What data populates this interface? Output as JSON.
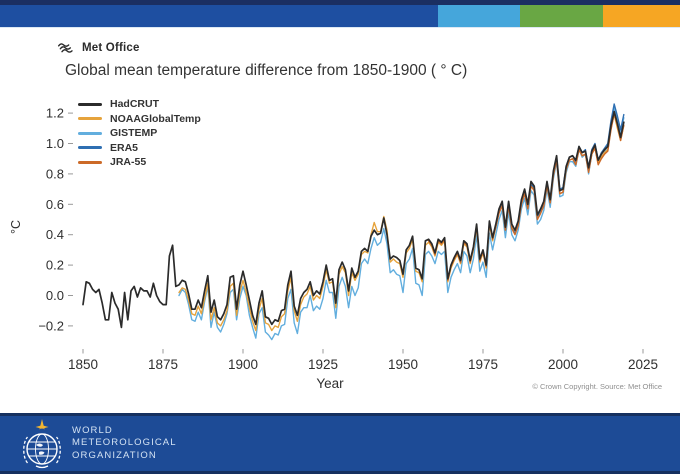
{
  "header": {
    "stripe_colors": {
      "navy": "#1b2f62",
      "blue": "#1e4fa1",
      "light_blue": "#45a6db",
      "green": "#69a744",
      "orange": "#f6a623"
    }
  },
  "brand": {
    "name": "Met Office"
  },
  "title": "Global mean temperature difference from 1850-1900 ( ° C)",
  "copyright": "© Crown Copyright. Source: Met Office",
  "footer": {
    "bar_color": "#1d4b96",
    "org": [
      "WORLD",
      "METEOROLOGICAL",
      "ORGANIZATION"
    ]
  },
  "chart_data": {
    "type": "line",
    "title": "Global mean temperature difference from 1850-1900 ( ° C)",
    "xlabel": "Year",
    "ylabel": "°C",
    "xlim": [
      1850,
      2025
    ],
    "ylim": [
      -0.3,
      1.3
    ],
    "grid": false,
    "legend_position": "top-left",
    "x_ticks": {
      "values": [
        1850,
        1875,
        1900,
        1925,
        1950,
        1975,
        2000,
        2025
      ],
      "labels": [
        "1850",
        "1875",
        "1900",
        "1925",
        "1950",
        "1975",
        "2000",
        "2025"
      ]
    },
    "y_ticks": {
      "values": [
        1.2,
        1.0,
        0.8,
        0.6,
        0.4,
        0.2,
        0.0,
        -0.2
      ],
      "labels": [
        "1.2",
        "1.0",
        "0.8",
        "0.6",
        "0.4",
        "0.2",
        "0.0",
        "−0.2"
      ]
    },
    "series": [
      {
        "name": "HadCRUT",
        "color": "#2b2b2b",
        "start_year": 1850,
        "values": [
          -0.06,
          0.09,
          0.08,
          0.04,
          0.02,
          0.04,
          -0.05,
          -0.16,
          -0.16,
          0.02,
          -0.05,
          -0.09,
          -0.21,
          0.02,
          -0.16,
          0.03,
          0.06,
          -0.01,
          0.05,
          0.03,
          0.03,
          -0.01,
          0.08,
          0.0,
          -0.04,
          -0.06,
          -0.06,
          0.26,
          0.33,
          0.06,
          0.07,
          0.1,
          0.09,
          0.01,
          -0.09,
          -0.09,
          -0.03,
          -0.08,
          0.03,
          0.13,
          -0.11,
          -0.03,
          -0.14,
          -0.16,
          -0.12,
          -0.06,
          0.12,
          0.13,
          -0.09,
          0.07,
          0.16,
          0.07,
          -0.03,
          -0.13,
          -0.19,
          -0.05,
          0.03,
          -0.14,
          -0.15,
          -0.19,
          -0.16,
          -0.17,
          -0.1,
          -0.09,
          0.07,
          0.16,
          -0.07,
          -0.13,
          -0.02,
          0.02,
          0.04,
          0.09,
          0.0,
          0.03,
          0.01,
          0.09,
          0.2,
          0.1,
          0.11,
          -0.05,
          0.17,
          0.22,
          0.17,
          0.03,
          0.18,
          0.12,
          0.16,
          0.29,
          0.31,
          0.29,
          0.39,
          0.43,
          0.4,
          0.41,
          0.51,
          0.4,
          0.24,
          0.26,
          0.25,
          0.23,
          0.14,
          0.3,
          0.33,
          0.39,
          0.18,
          0.17,
          0.11,
          0.36,
          0.37,
          0.34,
          0.28,
          0.37,
          0.35,
          0.38,
          0.11,
          0.2,
          0.25,
          0.29,
          0.23,
          0.36,
          0.34,
          0.23,
          0.32,
          0.47,
          0.24,
          0.3,
          0.2,
          0.49,
          0.38,
          0.47,
          0.57,
          0.62,
          0.45,
          0.62,
          0.47,
          0.43,
          0.49,
          0.63,
          0.7,
          0.6,
          0.75,
          0.72,
          0.53,
          0.57,
          0.62,
          0.75,
          0.63,
          0.82,
          0.92,
          0.69,
          0.7,
          0.85,
          0.91,
          0.92,
          0.89,
          0.98,
          0.94,
          0.95,
          0.84,
          0.95,
          0.99,
          0.89,
          0.93,
          0.96,
          0.98,
          1.12,
          1.21,
          1.13,
          1.04,
          1.14
        ]
      },
      {
        "name": "NOAAGlobalTemp",
        "color": "#e6a33c",
        "start_year": 1880,
        "values": [
          0.02,
          0.05,
          0.04,
          -0.03,
          -0.12,
          -0.13,
          -0.07,
          -0.12,
          -0.02,
          0.08,
          -0.16,
          -0.08,
          -0.18,
          -0.2,
          -0.16,
          -0.1,
          0.06,
          0.08,
          -0.13,
          0.02,
          0.1,
          0.02,
          -0.08,
          -0.17,
          -0.23,
          -0.09,
          -0.02,
          -0.18,
          -0.19,
          -0.23,
          -0.2,
          -0.21,
          -0.14,
          -0.12,
          0.03,
          0.12,
          -0.1,
          -0.17,
          -0.06,
          -0.01,
          0.01,
          0.06,
          -0.03,
          0.0,
          -0.02,
          0.06,
          0.17,
          0.08,
          0.09,
          -0.08,
          0.14,
          0.19,
          0.15,
          0.0,
          0.15,
          0.1,
          0.14,
          0.27,
          0.29,
          0.28,
          0.4,
          0.48,
          0.42,
          0.42,
          0.52,
          0.43,
          0.22,
          0.24,
          0.22,
          0.21,
          0.12,
          0.28,
          0.31,
          0.37,
          0.16,
          0.15,
          0.09,
          0.33,
          0.35,
          0.32,
          0.26,
          0.35,
          0.33,
          0.36,
          0.09,
          0.18,
          0.23,
          0.27,
          0.21,
          0.34,
          0.32,
          0.21,
          0.3,
          0.45,
          0.22,
          0.28,
          0.18,
          0.47,
          0.36,
          0.45,
          0.55,
          0.6,
          0.43,
          0.6,
          0.45,
          0.41,
          0.47,
          0.61,
          0.68,
          0.58,
          0.73,
          0.7,
          0.51,
          0.55,
          0.6,
          0.73,
          0.61,
          0.8,
          0.9,
          0.67,
          0.68,
          0.83,
          0.89,
          0.9,
          0.87,
          0.96,
          0.92,
          0.93,
          0.82,
          0.93,
          0.97,
          0.87,
          0.91,
          0.94,
          0.96,
          1.1,
          1.19,
          1.1,
          1.02,
          1.12
        ]
      },
      {
        "name": "GISTEMP",
        "color": "#62aede",
        "start_year": 1880,
        "values": [
          0.0,
          0.04,
          0.02,
          -0.06,
          -0.16,
          -0.17,
          -0.11,
          -0.16,
          -0.04,
          0.06,
          -0.21,
          -0.11,
          -0.21,
          -0.24,
          -0.19,
          -0.12,
          0.02,
          0.04,
          -0.16,
          -0.02,
          0.06,
          0.0,
          -0.13,
          -0.21,
          -0.28,
          -0.12,
          -0.08,
          -0.24,
          -0.26,
          -0.29,
          -0.25,
          -0.26,
          -0.2,
          -0.19,
          -0.02,
          0.04,
          -0.18,
          -0.25,
          -0.11,
          -0.08,
          -0.08,
          0.0,
          -0.1,
          -0.07,
          -0.09,
          -0.02,
          0.1,
          0.02,
          0.02,
          -0.15,
          0.06,
          0.12,
          0.06,
          -0.08,
          0.06,
          0.0,
          0.05,
          0.21,
          0.24,
          0.21,
          0.31,
          0.38,
          0.33,
          0.35,
          0.44,
          0.34,
          0.15,
          0.17,
          0.14,
          0.13,
          0.02,
          0.21,
          0.24,
          0.31,
          0.08,
          0.07,
          0.0,
          0.27,
          0.29,
          0.26,
          0.21,
          0.29,
          0.27,
          0.29,
          0.02,
          0.12,
          0.17,
          0.21,
          0.15,
          0.29,
          0.26,
          0.15,
          0.24,
          0.4,
          0.16,
          0.22,
          0.12,
          0.41,
          0.3,
          0.4,
          0.5,
          0.56,
          0.38,
          0.55,
          0.4,
          0.36,
          0.43,
          0.57,
          0.64,
          0.53,
          0.69,
          0.66,
          0.47,
          0.5,
          0.56,
          0.7,
          0.58,
          0.77,
          0.88,
          0.65,
          0.66,
          0.81,
          0.88,
          0.88,
          0.85,
          0.96,
          0.91,
          0.93,
          0.8,
          0.93,
          0.98,
          0.87,
          0.91,
          0.94,
          0.99,
          1.13,
          1.24,
          1.16,
          1.06,
          1.17
        ]
      },
      {
        "name": "ERA5",
        "color": "#2f6fb2",
        "start_year": 1979,
        "values": [
          0.46,
          0.55,
          0.6,
          0.43,
          0.6,
          0.44,
          0.41,
          0.47,
          0.61,
          0.68,
          0.59,
          0.73,
          0.71,
          0.52,
          0.56,
          0.61,
          0.74,
          0.63,
          0.8,
          0.91,
          0.7,
          0.71,
          0.85,
          0.91,
          0.92,
          0.88,
          0.98,
          0.94,
          0.96,
          0.84,
          0.96,
          1.0,
          0.89,
          0.94,
          0.97,
          1.0,
          1.15,
          1.26,
          1.18,
          1.09,
          1.19
        ]
      },
      {
        "name": "JRA-55",
        "color": "#cc6a28",
        "start_year": 1958,
        "values": [
          0.36,
          0.33,
          0.27,
          0.36,
          0.34,
          0.37,
          0.1,
          0.19,
          0.24,
          0.28,
          0.22,
          0.35,
          0.33,
          0.22,
          0.31,
          0.46,
          0.23,
          0.29,
          0.19,
          0.48,
          0.37,
          0.45,
          0.54,
          0.59,
          0.43,
          0.59,
          0.44,
          0.4,
          0.46,
          0.6,
          0.67,
          0.57,
          0.72,
          0.69,
          0.5,
          0.54,
          0.59,
          0.72,
          0.61,
          0.79,
          0.89,
          0.67,
          0.68,
          0.83,
          0.89,
          0.9,
          0.86,
          0.96,
          0.92,
          0.93,
          0.81,
          0.93,
          0.97,
          0.86,
          0.9,
          0.93,
          0.95,
          1.09,
          1.2,
          1.12,
          1.02,
          1.12
        ]
      }
    ]
  }
}
